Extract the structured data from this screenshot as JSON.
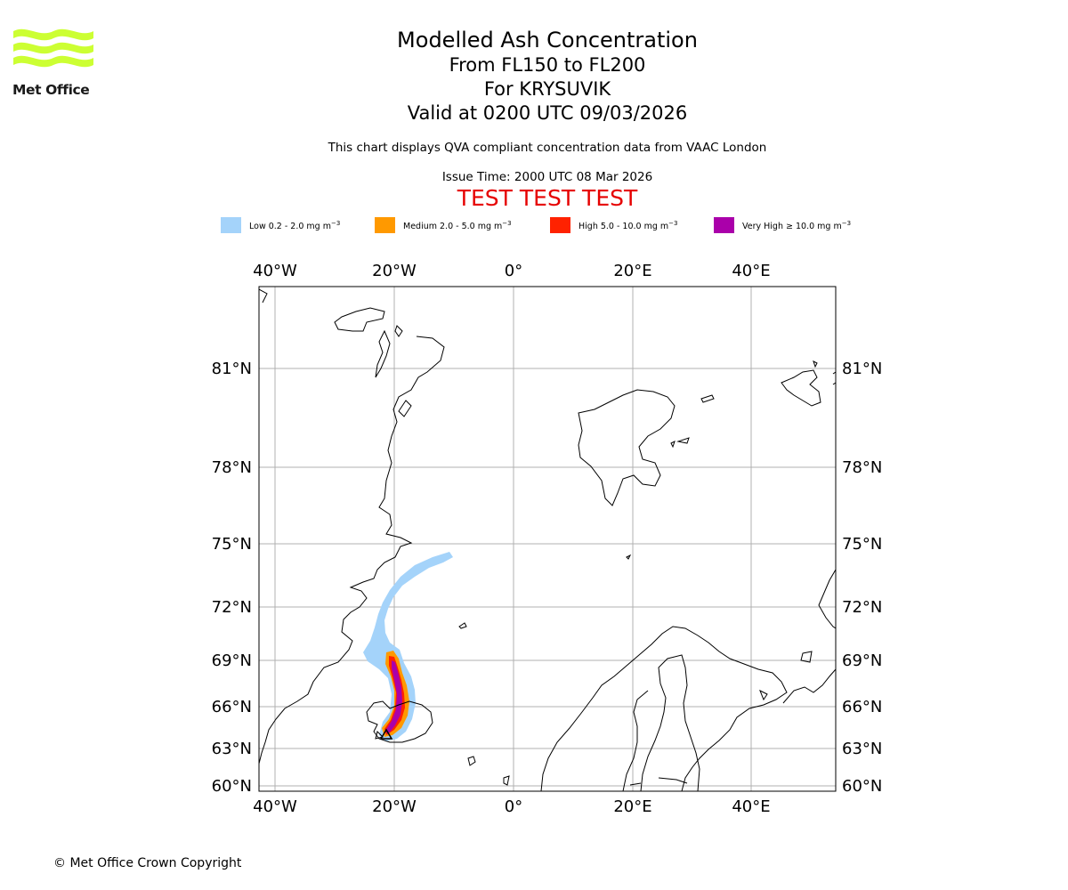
{
  "brand": {
    "name": "Met Office",
    "logo_color": "#ccff33"
  },
  "header": {
    "title": "Modelled Ash Concentration",
    "level": "From FL150 to FL200",
    "volcano": "For KRYSUVIK",
    "valid": "Valid at 0200 UTC 09/03/2026",
    "description": "This chart displays QVA compliant concentration data from VAAC London",
    "issue_time": "Issue Time: 2000 UTC 08 Mar 2026",
    "test_banner": "TEST TEST TEST"
  },
  "legend": [
    {
      "label": "Low 0.2 - 2.0 mg m",
      "unit_exp": "−3",
      "color": "#a4d3fa"
    },
    {
      "label": "Medium 2.0 - 5.0 mg m",
      "unit_exp": "−3",
      "color": "#ff9900"
    },
    {
      "label": "High 5.0 - 10.0 mg m",
      "unit_exp": "−3",
      "color": "#ff2200"
    },
    {
      "label": "Very High  ≥  10.0 mg m",
      "unit_exp": "−3",
      "color": "#aa00aa"
    }
  ],
  "map": {
    "lon_labels": [
      "40°W",
      "20°W",
      "0°",
      "20°E",
      "40°E"
    ],
    "lat_labels": [
      "81°N",
      "78°N",
      "75°N",
      "72°N",
      "69°N",
      "66°N",
      "63°N",
      "60°N"
    ],
    "grid_color": "#b0b0b0",
    "coast_color": "#000000"
  },
  "footer": {
    "copyright": "© Met Office Crown Copyright"
  }
}
